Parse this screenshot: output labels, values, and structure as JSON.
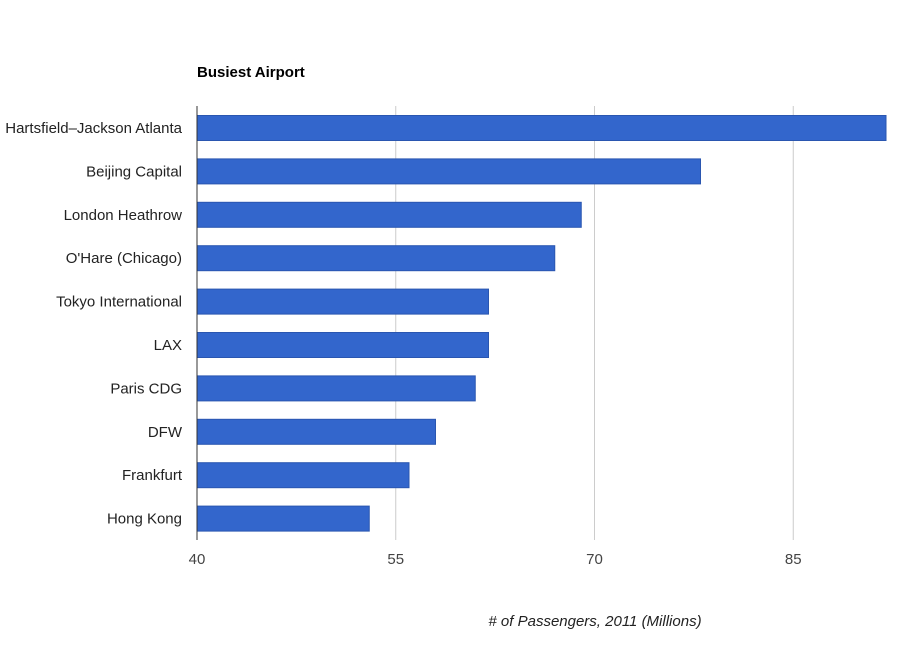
{
  "chart_data": {
    "type": "bar",
    "orientation": "horizontal",
    "title": "Busiest Airport",
    "xlabel": "# of Passengers, 2011 (Millions)",
    "ylabel": "",
    "categories": [
      "Hartsfield–Jackson Atlanta",
      "Beijing Capital",
      "London Heathrow",
      "O'Hare (Chicago)",
      "Tokyo International",
      "LAX",
      "Paris CDG",
      "DFW",
      "Frankfurt",
      "Hong Kong"
    ],
    "values": [
      92,
      78,
      69,
      67,
      62,
      62,
      61,
      58,
      56,
      53
    ],
    "xlim": [
      40,
      92
    ],
    "xticks": [
      40,
      55,
      70,
      85
    ],
    "xtick_labels": [
      "40",
      "55",
      "70",
      "85"
    ],
    "grid": true,
    "legend": "none",
    "bar_color": "#3366cc",
    "grid_color": "#cccccc"
  }
}
